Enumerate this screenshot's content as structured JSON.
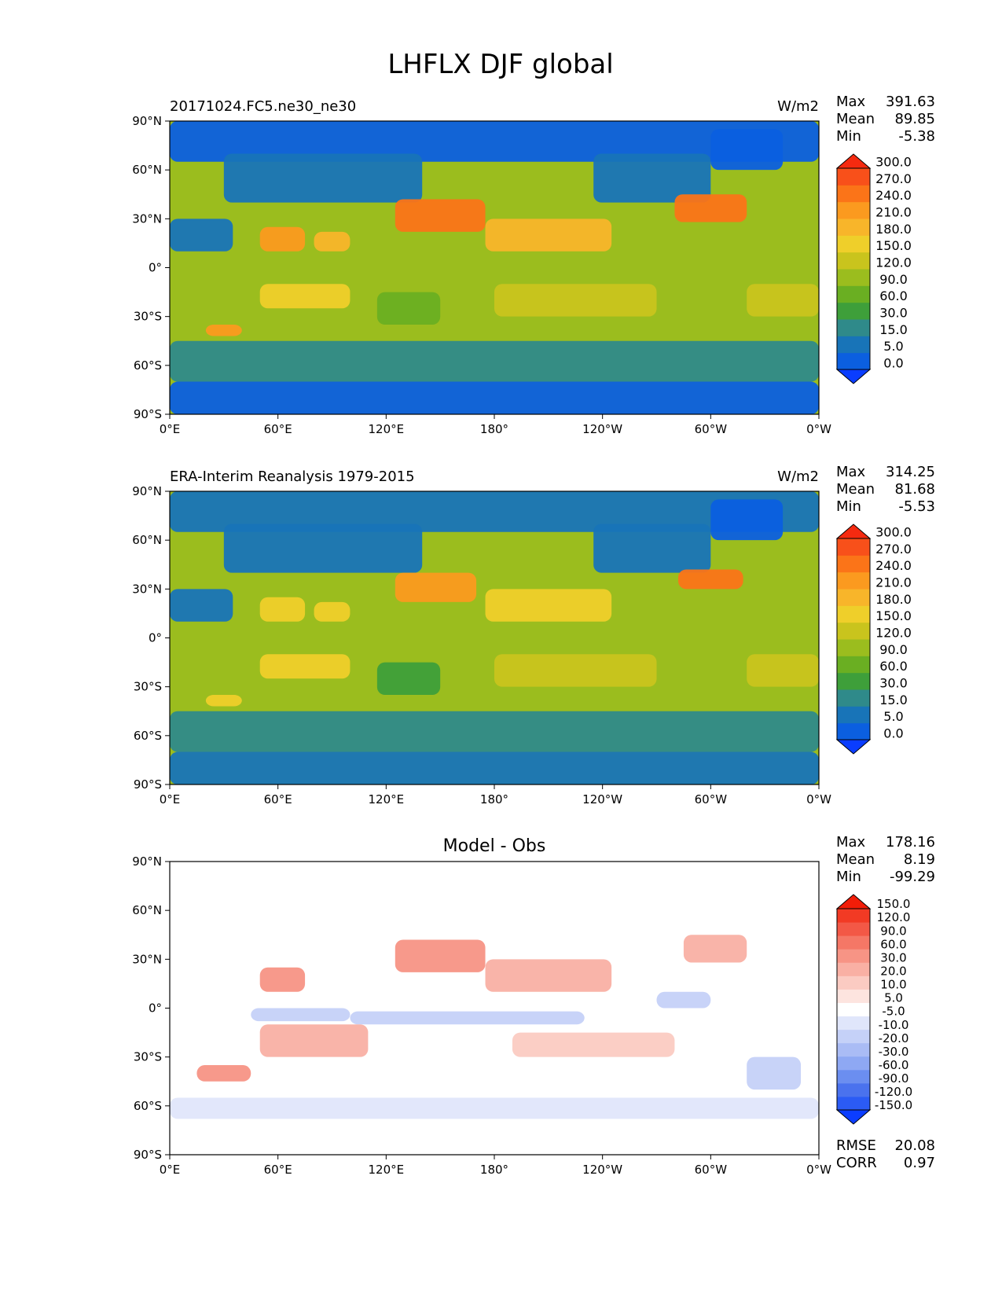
{
  "figure": {
    "title": "LHFLX DJF global"
  },
  "chart_data": [
    {
      "type": "heatmap",
      "title": "20171024.FC5.ne30_ne30",
      "units": "W/m2",
      "stats": {
        "max_label": "Max",
        "max": "391.63",
        "mean_label": "Mean",
        "mean": "89.85",
        "min_label": "Min",
        "min": "-5.38"
      },
      "x_ticks": [
        "0°E",
        "60°E",
        "120°E",
        "180°",
        "120°W",
        "60°W",
        "0°W"
      ],
      "y_ticks": [
        "90°N",
        "60°N",
        "30°N",
        "0°",
        "30°S",
        "60°S",
        "90°S"
      ],
      "xlim": [
        0,
        360
      ],
      "ylim": [
        -90,
        90
      ],
      "colorbar": {
        "levels": [
          "0.0",
          "5.0",
          "15.0",
          "30.0",
          "60.0",
          "90.0",
          "120.0",
          "150.0",
          "180.0",
          "210.0",
          "240.0",
          "270.0",
          "300.0"
        ],
        "colors": [
          "#0a3dff",
          "#0b5fe0",
          "#1874b8",
          "#2f8a8a",
          "#3e9f3a",
          "#6aaf22",
          "#9bbd1e",
          "#c9c41d",
          "#efcf2a",
          "#f8b52a",
          "#fb9a1f",
          "#fb7418",
          "#f8501a",
          "#f52a10"
        ]
      },
      "regions": [
        {
          "label": "southern-ocean",
          "lon": [
            0,
            360
          ],
          "lat": [
            -70,
            -45
          ],
          "value": 20
        },
        {
          "label": "antarctica",
          "lon": [
            0,
            360
          ],
          "lat": [
            -90,
            -70
          ],
          "value": 2
        },
        {
          "label": "arctic",
          "lon": [
            0,
            360
          ],
          "lat": [
            65,
            90
          ],
          "value": 3
        },
        {
          "label": "north-eurasia",
          "lon": [
            30,
            140
          ],
          "lat": [
            40,
            70
          ],
          "value": 10
        },
        {
          "label": "north-america",
          "lon": [
            235,
            300
          ],
          "lat": [
            40,
            70
          ],
          "value": 12
        },
        {
          "label": "kuroshio",
          "lon": [
            125,
            175
          ],
          "lat": [
            22,
            42
          ],
          "value": 250
        },
        {
          "label": "gulf-stream",
          "lon": [
            280,
            320
          ],
          "lat": [
            28,
            45
          ],
          "value": 260
        },
        {
          "label": "north-pacific-subtropics",
          "lon": [
            175,
            245
          ],
          "lat": [
            10,
            30
          ],
          "value": 185
        },
        {
          "label": "arabian-sea",
          "lon": [
            50,
            75
          ],
          "lat": [
            10,
            25
          ],
          "value": 210
        },
        {
          "label": "bay-of-bengal",
          "lon": [
            80,
            100
          ],
          "lat": [
            10,
            22
          ],
          "value": 190
        },
        {
          "label": "south-indian",
          "lon": [
            50,
            100
          ],
          "lat": [
            -25,
            -10
          ],
          "value": 170
        },
        {
          "label": "south-pacific",
          "lon": [
            180,
            270
          ],
          "lat": [
            -30,
            -10
          ],
          "value": 145
        },
        {
          "label": "south-atlantic",
          "lon": [
            320,
            360
          ],
          "lat": [
            -30,
            -10
          ],
          "value": 140
        },
        {
          "label": "north-africa",
          "lon": [
            0,
            35
          ],
          "lat": [
            10,
            30
          ],
          "value": 8
        },
        {
          "label": "australia",
          "lon": [
            115,
            150
          ],
          "lat": [
            -35,
            -15
          ],
          "value": 60
        },
        {
          "label": "agulhas",
          "lon": [
            20,
            40
          ],
          "lat": [
            -42,
            -35
          ],
          "value": 220
        },
        {
          "label": "greenland",
          "lon": [
            300,
            340
          ],
          "lat": [
            60,
            85
          ],
          "value": 1
        }
      ]
    },
    {
      "type": "heatmap",
      "title": "ERA-Interim Reanalysis 1979-2015",
      "units": "W/m2",
      "stats": {
        "max_label": "Max",
        "max": "314.25",
        "mean_label": "Mean",
        "mean": "81.68",
        "min_label": "Min",
        "min": "-5.53"
      },
      "x_ticks": [
        "0°E",
        "60°E",
        "120°E",
        "180°",
        "120°W",
        "60°W",
        "0°W"
      ],
      "y_ticks": [
        "90°N",
        "60°N",
        "30°N",
        "0°",
        "30°S",
        "60°S",
        "90°S"
      ],
      "xlim": [
        0,
        360
      ],
      "ylim": [
        -90,
        90
      ],
      "colorbar": {
        "levels": [
          "0.0",
          "5.0",
          "15.0",
          "30.0",
          "60.0",
          "90.0",
          "120.0",
          "150.0",
          "180.0",
          "210.0",
          "240.0",
          "270.0",
          "300.0"
        ],
        "colors": [
          "#0a3dff",
          "#0b5fe0",
          "#1874b8",
          "#2f8a8a",
          "#3e9f3a",
          "#6aaf22",
          "#9bbd1e",
          "#c9c41d",
          "#efcf2a",
          "#f8b52a",
          "#fb9a1f",
          "#fb7418",
          "#f8501a",
          "#f52a10"
        ]
      },
      "regions": [
        {
          "label": "southern-ocean",
          "lon": [
            0,
            360
          ],
          "lat": [
            -70,
            -45
          ],
          "value": 25
        },
        {
          "label": "antarctica",
          "lon": [
            0,
            360
          ],
          "lat": [
            -90,
            -70
          ],
          "value": 10
        },
        {
          "label": "arctic",
          "lon": [
            0,
            360
          ],
          "lat": [
            65,
            90
          ],
          "value": 8
        },
        {
          "label": "north-eurasia",
          "lon": [
            30,
            140
          ],
          "lat": [
            40,
            70
          ],
          "value": 8
        },
        {
          "label": "north-america",
          "lon": [
            235,
            300
          ],
          "lat": [
            40,
            70
          ],
          "value": 10
        },
        {
          "label": "kuroshio",
          "lon": [
            125,
            170
          ],
          "lat": [
            22,
            40
          ],
          "value": 220
        },
        {
          "label": "gulf-stream",
          "lon": [
            282,
            318
          ],
          "lat": [
            30,
            42
          ],
          "value": 245
        },
        {
          "label": "north-pacific-subtropics",
          "lon": [
            175,
            245
          ],
          "lat": [
            10,
            30
          ],
          "value": 165
        },
        {
          "label": "arabian-sea",
          "lon": [
            50,
            75
          ],
          "lat": [
            10,
            25
          ],
          "value": 160
        },
        {
          "label": "bay-of-bengal",
          "lon": [
            80,
            100
          ],
          "lat": [
            10,
            22
          ],
          "value": 150
        },
        {
          "label": "south-indian",
          "lon": [
            50,
            100
          ],
          "lat": [
            -25,
            -10
          ],
          "value": 160
        },
        {
          "label": "south-pacific",
          "lon": [
            180,
            270
          ],
          "lat": [
            -30,
            -10
          ],
          "value": 140
        },
        {
          "label": "south-atlantic",
          "lon": [
            320,
            360
          ],
          "lat": [
            -30,
            -10
          ],
          "value": 130
        },
        {
          "label": "north-africa",
          "lon": [
            0,
            35
          ],
          "lat": [
            10,
            30
          ],
          "value": 8
        },
        {
          "label": "australia",
          "lon": [
            115,
            150
          ],
          "lat": [
            -35,
            -15
          ],
          "value": 55
        },
        {
          "label": "agulhas",
          "lon": [
            20,
            40
          ],
          "lat": [
            -42,
            -35
          ],
          "value": 150
        },
        {
          "label": "greenland",
          "lon": [
            300,
            340
          ],
          "lat": [
            60,
            85
          ],
          "value": 3
        }
      ]
    },
    {
      "type": "heatmap",
      "title": "Model - Obs",
      "units": "",
      "stats": {
        "max_label": "Max",
        "max": "178.16",
        "mean_label": "Mean",
        "mean": "8.19",
        "min_label": "Min",
        "min": "-99.29"
      },
      "metrics": {
        "rmse_label": "RMSE",
        "rmse": "20.08",
        "corr_label": "CORR",
        "corr": "0.97"
      },
      "x_ticks": [
        "0°E",
        "60°E",
        "120°E",
        "180°",
        "120°W",
        "60°W",
        "0°W"
      ],
      "y_ticks": [
        "90°N",
        "60°N",
        "30°N",
        "0°",
        "30°S",
        "60°S",
        "90°S"
      ],
      "xlim": [
        0,
        360
      ],
      "ylim": [
        -90,
        90
      ],
      "colorbar": {
        "levels": [
          "-150.0",
          "-120.0",
          "-90.0",
          "-60.0",
          "-30.0",
          "-20.0",
          "-10.0",
          "-5.0",
          "5.0",
          "10.0",
          "20.0",
          "30.0",
          "60.0",
          "90.0",
          "120.0",
          "150.0"
        ],
        "colors": [
          "#0b3dff",
          "#2b5bf5",
          "#4a72ee",
          "#6b8ef0",
          "#8ea8f3",
          "#aabcf5",
          "#c5d1f8",
          "#e0e6fb",
          "#ffffff",
          "#fde4df",
          "#fbcbc2",
          "#f9b0a4",
          "#f79485",
          "#f57766",
          "#f35846",
          "#f23a24",
          "#f21d08"
        ]
      },
      "regions": [
        {
          "label": "kuroshio",
          "lon": [
            125,
            175
          ],
          "lat": [
            22,
            42
          ],
          "value": 30
        },
        {
          "label": "gulf-stream",
          "lon": [
            285,
            320
          ],
          "lat": [
            28,
            45
          ],
          "value": 25
        },
        {
          "label": "north-pacific",
          "lon": [
            175,
            245
          ],
          "lat": [
            10,
            30
          ],
          "value": 25
        },
        {
          "label": "arabian-sea",
          "lon": [
            50,
            75
          ],
          "lat": [
            10,
            25
          ],
          "value": 45
        },
        {
          "label": "indian-ocean-eq",
          "lon": [
            45,
            100
          ],
          "lat": [
            -8,
            0
          ],
          "value": -15
        },
        {
          "label": "west-pacific-eq",
          "lon": [
            100,
            230
          ],
          "lat": [
            -10,
            -2
          ],
          "value": -20
        },
        {
          "label": "south-indian",
          "lon": [
            50,
            110
          ],
          "lat": [
            -30,
            -10
          ],
          "value": 20
        },
        {
          "label": "south-pacific",
          "lon": [
            190,
            280
          ],
          "lat": [
            -30,
            -15
          ],
          "value": 15
        },
        {
          "label": "south-atlantic",
          "lon": [
            320,
            350
          ],
          "lat": [
            -50,
            -30
          ],
          "value": -15
        },
        {
          "label": "agulhas",
          "lon": [
            15,
            45
          ],
          "lat": [
            -45,
            -35
          ],
          "value": 35
        },
        {
          "label": "southern-ocean",
          "lon": [
            0,
            360
          ],
          "lat": [
            -68,
            -55
          ],
          "value": -7
        },
        {
          "label": "east-pacific",
          "lon": [
            270,
            300
          ],
          "lat": [
            0,
            10
          ],
          "value": -12
        }
      ]
    }
  ]
}
